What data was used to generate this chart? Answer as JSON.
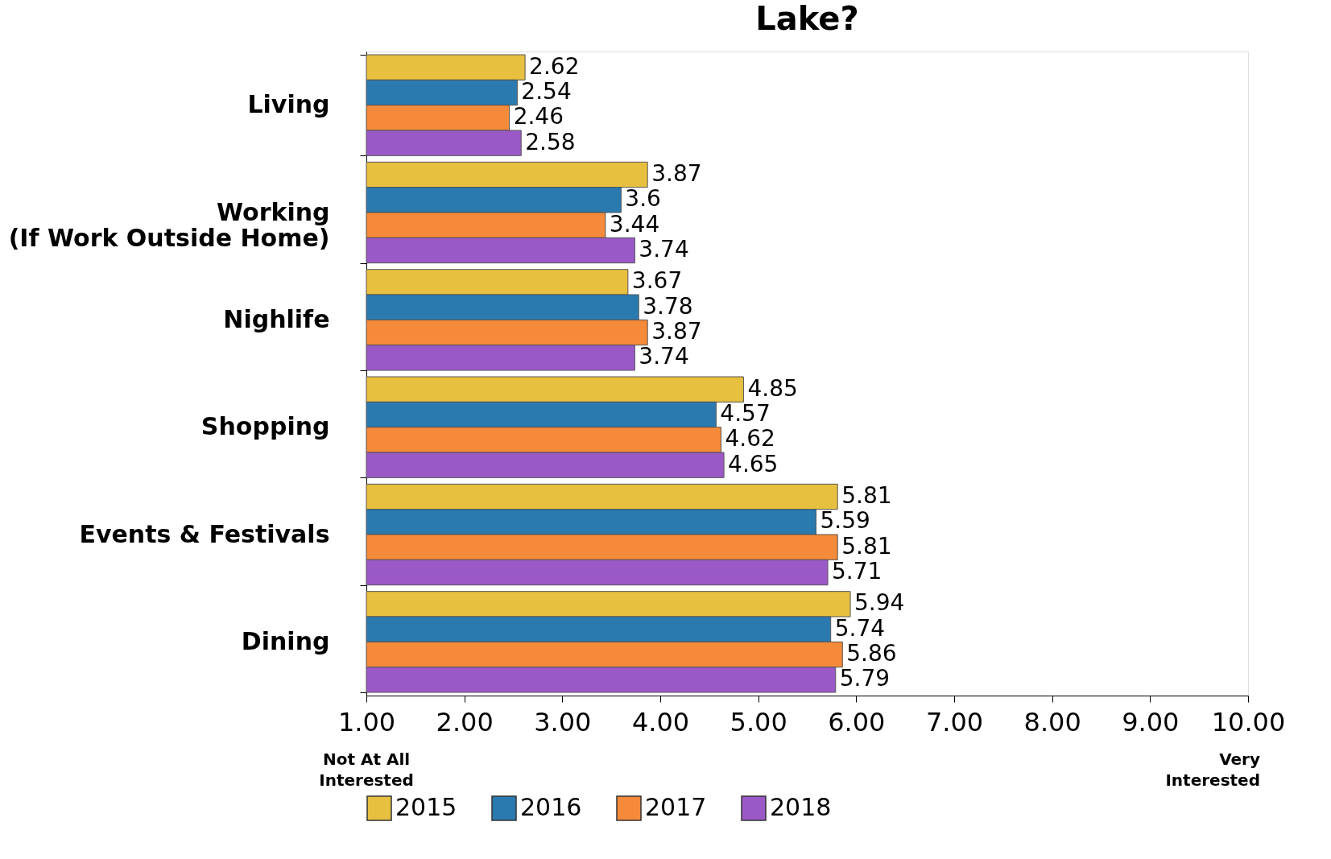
{
  "chart_data": {
    "type": "bar",
    "orientation": "horizontal",
    "title": "Lake?",
    "categories": [
      "Living",
      "Working\n(If Work Outside Home)",
      "Nighlife",
      "Shopping",
      "Events & Festivals",
      "Dining"
    ],
    "series": [
      {
        "name": "2015",
        "color": "#e8c040",
        "values": [
          2.62,
          3.87,
          3.67,
          4.85,
          5.81,
          5.94
        ]
      },
      {
        "name": "2016",
        "color": "#2a7ab0",
        "values": [
          2.54,
          3.6,
          3.78,
          4.57,
          5.59,
          5.74
        ]
      },
      {
        "name": "2017",
        "color": "#f58a3a",
        "values": [
          2.46,
          3.44,
          3.87,
          4.62,
          5.81,
          5.86
        ]
      },
      {
        "name": "2018",
        "color": "#9b59c8",
        "values": [
          2.58,
          3.74,
          3.74,
          4.65,
          5.71,
          5.79
        ]
      }
    ],
    "xlim": [
      1,
      10
    ],
    "xticks": [
      {
        "value": 1,
        "label": "1.00"
      },
      {
        "value": 2,
        "label": "2.00"
      },
      {
        "value": 3,
        "label": "3.00"
      },
      {
        "value": 4,
        "label": "4.00"
      },
      {
        "value": 5,
        "label": "5.00"
      },
      {
        "value": 6,
        "label": "6.00"
      },
      {
        "value": 7,
        "label": "7.00"
      },
      {
        "value": 8,
        "label": "8.00"
      },
      {
        "value": 9,
        "label": "9.00"
      },
      {
        "value": 10,
        "label": "10.00"
      }
    ],
    "annotations": [
      "Not At All\nInterested",
      "Very\nInterested"
    ],
    "data_labels": true,
    "legend": "bottom",
    "grid": false
  }
}
